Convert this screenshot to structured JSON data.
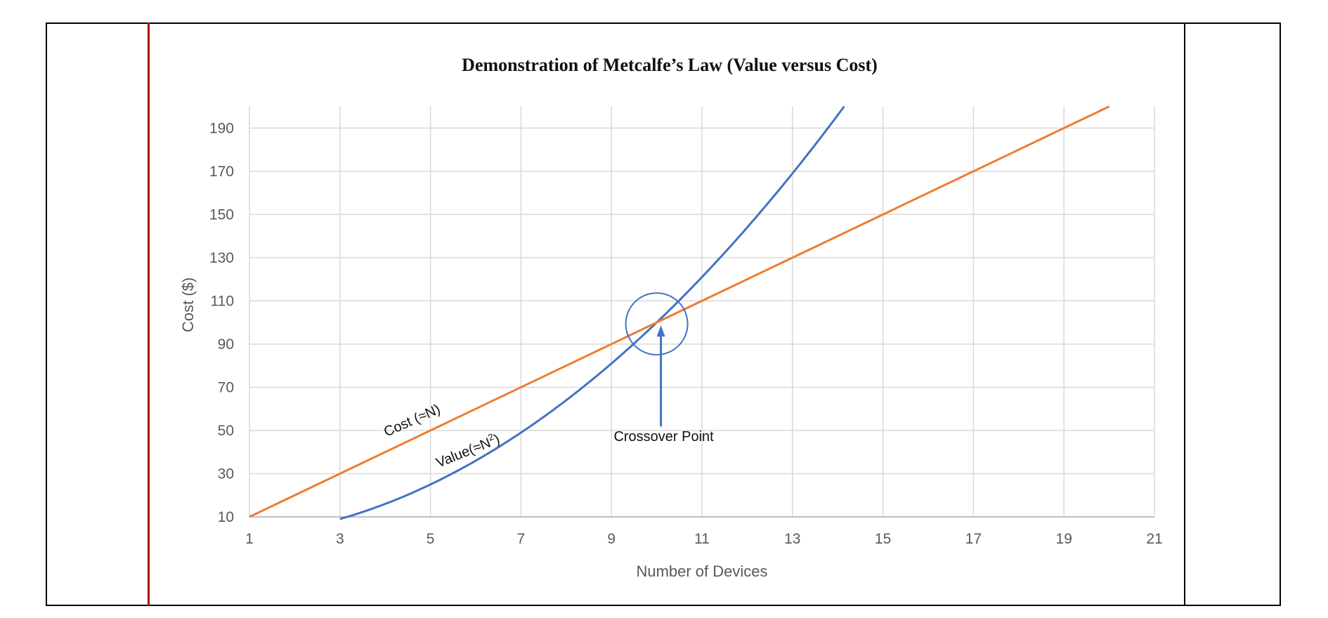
{
  "colors": {
    "value_series": "#4472c4",
    "cost_series": "#ed7d31",
    "grid": "#d9d9d9",
    "annotation": "#4472c4"
  },
  "chart_data": {
    "type": "line",
    "title": "Demonstration of Metcalfe’s Law (Value versus Cost)",
    "xlabel": "Number of Devices",
    "ylabel": "Cost ($)",
    "xlim": [
      1,
      21
    ],
    "ylim": [
      10,
      200
    ],
    "x_ticks": [
      1,
      3,
      5,
      7,
      9,
      11,
      13,
      15,
      17,
      19,
      21
    ],
    "y_ticks": [
      10,
      30,
      50,
      70,
      90,
      110,
      130,
      150,
      170,
      190
    ],
    "grid": true,
    "series": [
      {
        "label": "Value(≈N",
        "label_sup": "2",
        "label_close": ")",
        "x": [
          3,
          4,
          5,
          6,
          7,
          8,
          9,
          10,
          11,
          12,
          13,
          14,
          14.14
        ],
        "y": [
          9,
          16,
          25,
          36,
          49,
          64,
          81,
          100,
          121,
          144,
          169,
          196,
          200
        ]
      },
      {
        "label": "Cost (≈N)",
        "x": [
          1,
          20
        ],
        "y": [
          10,
          200
        ]
      }
    ],
    "annotations": [
      {
        "text": "Crossover Point",
        "x": 10,
        "y": 100
      }
    ]
  }
}
